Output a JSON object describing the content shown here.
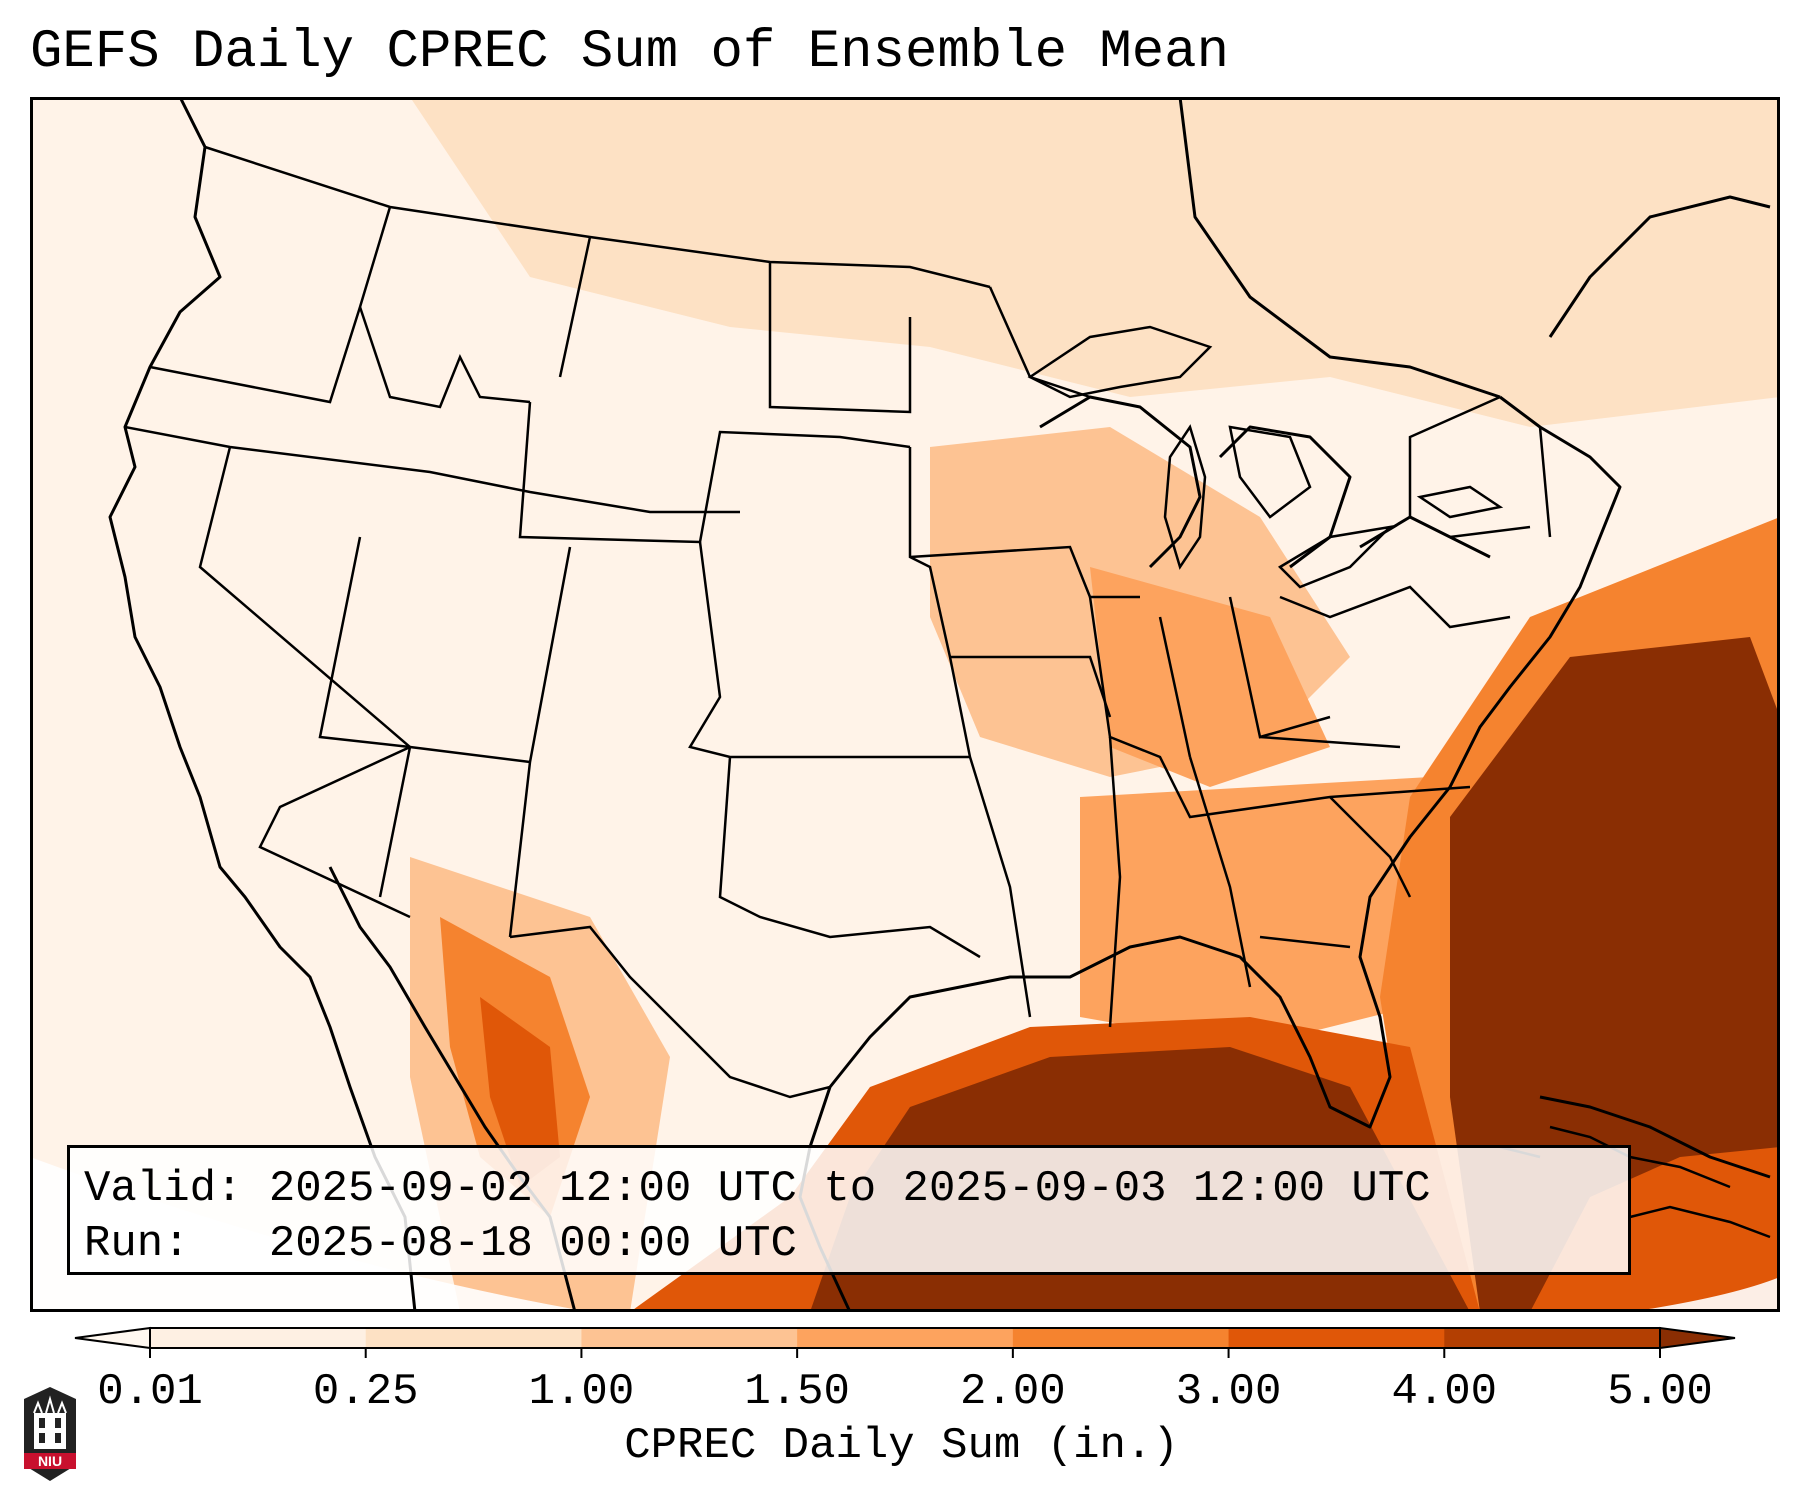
{
  "title": "GEFS Daily CPREC Sum of Ensemble Mean",
  "info": {
    "valid_label": "Valid:",
    "valid_value": "2025-09-02 12:00 UTC to 2025-09-03 12:00 UTC",
    "run_label": "Run:",
    "run_value": "2025-08-18 00:00 UTC"
  },
  "colorbar": {
    "label": "CPREC Daily Sum (in.)",
    "ticks": [
      "0.01",
      "0.25",
      "1.00",
      "1.50",
      "2.00",
      "3.00",
      "4.00",
      "5.00"
    ],
    "colors": [
      "#fef0e3",
      "#fde1c4",
      "#fdc393",
      "#fda35e",
      "#f5832f",
      "#e05708",
      "#b33f02"
    ],
    "under_color": "#fff8f0",
    "over_color": "#8a2e03"
  },
  "map": {
    "region": "contiguous-united-states",
    "projection": "lambert-conformal",
    "colors": {
      "background": "#fff3e8",
      "outside_domain": "#ffffff",
      "heavy_precip": "#8a2e03",
      "borders": "#000000"
    }
  },
  "logo": {
    "text": "NIU",
    "color": "#c8102e"
  }
}
